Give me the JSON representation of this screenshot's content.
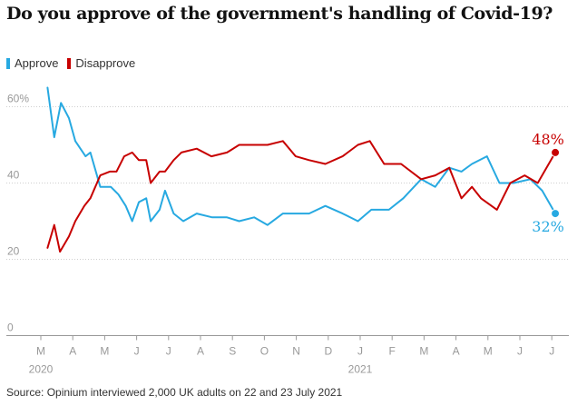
{
  "title": "Do you approve of the government's handling of Covid-19?",
  "legend": [
    {
      "label": "Approve",
      "color": "#27a9e1"
    },
    {
      "label": "Disapprove",
      "color": "#c70000"
    }
  ],
  "source": "Source: Opinium interviewed 2,000 UK adults on 22 and 23 July 2021",
  "chart_data": {
    "type": "line",
    "title": "Do you approve of the government's handling of Covid-19?",
    "xlabel": "",
    "ylabel": "",
    "ylim": [
      0,
      65
    ],
    "y_ticks": [
      {
        "value": 0,
        "label": "0"
      },
      {
        "value": 20,
        "label": "20"
      },
      {
        "value": 40,
        "label": "40"
      },
      {
        "value": 60,
        "label": "60%"
      }
    ],
    "x_ticks": [
      "M",
      "A",
      "M",
      "J",
      "J",
      "A",
      "S",
      "O",
      "N",
      "D",
      "J",
      "F",
      "M",
      "A",
      "M",
      "J",
      "J"
    ],
    "year_labels": [
      {
        "label": "2020",
        "month_index": 0
      },
      {
        "label": "2021",
        "month_index": 10
      }
    ],
    "grid": true,
    "legend_position": "top-left",
    "series": [
      {
        "name": "Approve",
        "color": "#27a9e1",
        "end_label": "32%",
        "points": [
          [
            0.21,
            65
          ],
          [
            0.42,
            52
          ],
          [
            0.63,
            61
          ],
          [
            0.88,
            57
          ],
          [
            1.08,
            51
          ],
          [
            1.4,
            47
          ],
          [
            1.55,
            48
          ],
          [
            1.86,
            39
          ],
          [
            2.19,
            39
          ],
          [
            2.43,
            37
          ],
          [
            2.66,
            34
          ],
          [
            2.86,
            30
          ],
          [
            3.07,
            35
          ],
          [
            3.3,
            36
          ],
          [
            3.44,
            30
          ],
          [
            3.72,
            33
          ],
          [
            3.89,
            38
          ],
          [
            4.16,
            32
          ],
          [
            4.46,
            30
          ],
          [
            4.88,
            32
          ],
          [
            5.37,
            31
          ],
          [
            5.83,
            31
          ],
          [
            6.21,
            30
          ],
          [
            6.68,
            31
          ],
          [
            7.1,
            29
          ],
          [
            7.58,
            32
          ],
          [
            8.4,
            32
          ],
          [
            8.91,
            34
          ],
          [
            9.45,
            32
          ],
          [
            9.93,
            30
          ],
          [
            10.35,
            33
          ],
          [
            10.9,
            33
          ],
          [
            11.35,
            36
          ],
          [
            11.91,
            41
          ],
          [
            12.35,
            39
          ],
          [
            12.79,
            44
          ],
          [
            13.17,
            43
          ],
          [
            13.5,
            45
          ],
          [
            13.97,
            47
          ],
          [
            14.36,
            40
          ],
          [
            14.8,
            40
          ],
          [
            15.33,
            41
          ],
          [
            15.7,
            38
          ],
          [
            16.11,
            32
          ]
        ]
      },
      {
        "name": "Disapprove",
        "color": "#c70000",
        "end_label": "48%",
        "points": [
          [
            0.21,
            23
          ],
          [
            0.42,
            29
          ],
          [
            0.6,
            22
          ],
          [
            0.88,
            26
          ],
          [
            1.08,
            30
          ],
          [
            1.36,
            34
          ],
          [
            1.55,
            36
          ],
          [
            1.86,
            42
          ],
          [
            2.16,
            43
          ],
          [
            2.37,
            43
          ],
          [
            2.61,
            47
          ],
          [
            2.86,
            48
          ],
          [
            3.07,
            46
          ],
          [
            3.3,
            46
          ],
          [
            3.44,
            40
          ],
          [
            3.72,
            43
          ],
          [
            3.89,
            43
          ],
          [
            4.16,
            46
          ],
          [
            4.4,
            48
          ],
          [
            4.88,
            49
          ],
          [
            5.34,
            47
          ],
          [
            5.83,
            48
          ],
          [
            6.21,
            50
          ],
          [
            6.68,
            50
          ],
          [
            7.1,
            50
          ],
          [
            7.58,
            51
          ],
          [
            7.98,
            47
          ],
          [
            8.4,
            46
          ],
          [
            8.91,
            45
          ],
          [
            9.45,
            47
          ],
          [
            9.93,
            50
          ],
          [
            10.3,
            51
          ],
          [
            10.75,
            45
          ],
          [
            11.28,
            45
          ],
          [
            11.91,
            41
          ],
          [
            12.35,
            42
          ],
          [
            12.79,
            44
          ],
          [
            13.17,
            36
          ],
          [
            13.5,
            39
          ],
          [
            13.78,
            36
          ],
          [
            14.28,
            33
          ],
          [
            14.7,
            40
          ],
          [
            15.15,
            42
          ],
          [
            15.56,
            40
          ],
          [
            16.11,
            48
          ]
        ]
      }
    ]
  }
}
